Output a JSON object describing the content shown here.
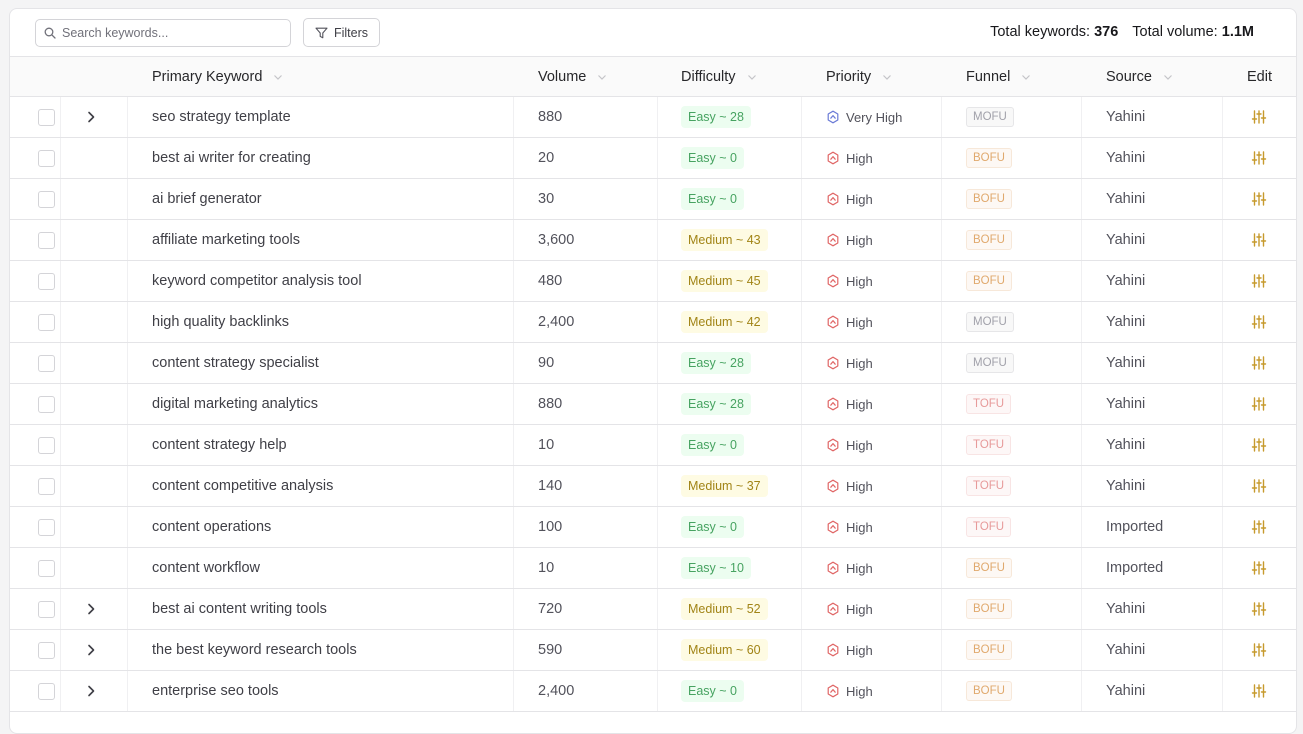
{
  "search": {
    "placeholder": "Search keywords..."
  },
  "filters_label": "Filters",
  "totals": {
    "keywords_label": "Total keywords:",
    "keywords_value": "376",
    "volume_label": "Total volume:",
    "volume_value": "1.1M"
  },
  "columns": {
    "primary_keyword": "Primary Keyword",
    "volume": "Volume",
    "difficulty": "Difficulty",
    "priority": "Priority",
    "funnel": "Funnel",
    "source": "Source",
    "edit": "Edit"
  },
  "colors": {
    "easy_text": "#47a361",
    "medium_text": "#a18416",
    "mofu_text": "#a1a1aa",
    "bofu_text": "#e0a96d",
    "tofu_text": "#e79a9a",
    "priority_icon": "#e06666",
    "very_high_icon": "#6b7bd6",
    "edit_icon": "#c69a2d"
  },
  "rows": [
    {
      "keyword": "seo strategy template",
      "volume": "880",
      "difficulty": "Easy ~ 28",
      "level": "easy",
      "priority": "Very High",
      "funnel": "MOFU",
      "source": "Yahini",
      "expandable": true
    },
    {
      "keyword": "best ai writer for creating",
      "volume": "20",
      "difficulty": "Easy ~ 0",
      "level": "easy",
      "priority": "High",
      "funnel": "BOFU",
      "source": "Yahini",
      "expandable": false
    },
    {
      "keyword": "ai brief generator",
      "volume": "30",
      "difficulty": "Easy ~ 0",
      "level": "easy",
      "priority": "High",
      "funnel": "BOFU",
      "source": "Yahini",
      "expandable": false
    },
    {
      "keyword": "affiliate marketing tools",
      "volume": "3,600",
      "difficulty": "Medium ~ 43",
      "level": "medium",
      "priority": "High",
      "funnel": "BOFU",
      "source": "Yahini",
      "expandable": false
    },
    {
      "keyword": "keyword competitor analysis tool",
      "volume": "480",
      "difficulty": "Medium ~ 45",
      "level": "medium",
      "priority": "High",
      "funnel": "BOFU",
      "source": "Yahini",
      "expandable": false
    },
    {
      "keyword": "high quality backlinks",
      "volume": "2,400",
      "difficulty": "Medium ~ 42",
      "level": "medium",
      "priority": "High",
      "funnel": "MOFU",
      "source": "Yahini",
      "expandable": false
    },
    {
      "keyword": "content strategy specialist",
      "volume": "90",
      "difficulty": "Easy ~ 28",
      "level": "easy",
      "priority": "High",
      "funnel": "MOFU",
      "source": "Yahini",
      "expandable": false
    },
    {
      "keyword": "digital marketing analytics",
      "volume": "880",
      "difficulty": "Easy ~ 28",
      "level": "easy",
      "priority": "High",
      "funnel": "TOFU",
      "source": "Yahini",
      "expandable": false
    },
    {
      "keyword": "content strategy help",
      "volume": "10",
      "difficulty": "Easy ~ 0",
      "level": "easy",
      "priority": "High",
      "funnel": "TOFU",
      "source": "Yahini",
      "expandable": false
    },
    {
      "keyword": "content competitive analysis",
      "volume": "140",
      "difficulty": "Medium ~ 37",
      "level": "medium",
      "priority": "High",
      "funnel": "TOFU",
      "source": "Yahini",
      "expandable": false
    },
    {
      "keyword": "content operations",
      "volume": "100",
      "difficulty": "Easy ~ 0",
      "level": "easy",
      "priority": "High",
      "funnel": "TOFU",
      "source": "Imported",
      "expandable": false
    },
    {
      "keyword": "content workflow",
      "volume": "10",
      "difficulty": "Easy ~ 10",
      "level": "easy",
      "priority": "High",
      "funnel": "BOFU",
      "source": "Imported",
      "expandable": false
    },
    {
      "keyword": "best ai content writing tools",
      "volume": "720",
      "difficulty": "Medium ~ 52",
      "level": "medium",
      "priority": "High",
      "funnel": "BOFU",
      "source": "Yahini",
      "expandable": true
    },
    {
      "keyword": "the best keyword research tools",
      "volume": "590",
      "difficulty": "Medium ~ 60",
      "level": "medium",
      "priority": "High",
      "funnel": "BOFU",
      "source": "Yahini",
      "expandable": true
    },
    {
      "keyword": "enterprise seo tools",
      "volume": "2,400",
      "difficulty": "Easy ~ 0",
      "level": "easy",
      "priority": "High",
      "funnel": "BOFU",
      "source": "Yahini",
      "expandable": true
    }
  ]
}
